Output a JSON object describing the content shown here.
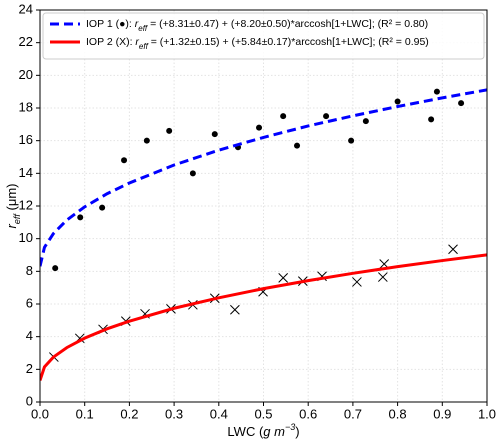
{
  "chart_data": {
    "type": "scatter",
    "xlabel_parts": [
      "LWC (",
      "g m",
      "−3",
      ")"
    ],
    "ylabel_parts": [
      "r",
      "eff",
      " (μm)"
    ],
    "xlim": [
      0,
      1
    ],
    "ylim": [
      0,
      24
    ],
    "xticks": [
      {
        "value": 0,
        "label": "0.0"
      },
      {
        "value": 0.1,
        "label": "0.1"
      },
      {
        "value": 0.2,
        "label": "0.2"
      },
      {
        "value": 0.3,
        "label": "0.3"
      },
      {
        "value": 0.4,
        "label": "0.4"
      },
      {
        "value": 0.5,
        "label": "0.5"
      },
      {
        "value": 0.6,
        "label": "0.6"
      },
      {
        "value": 0.7,
        "label": "0.7"
      },
      {
        "value": 0.8,
        "label": "0.8"
      },
      {
        "value": 0.9,
        "label": "0.9"
      },
      {
        "value": 1,
        "label": "1.0"
      }
    ],
    "yticks": [
      0,
      2,
      4,
      6,
      8,
      10,
      12,
      14,
      16,
      18,
      20,
      22,
      24
    ],
    "grid": true,
    "legend": "upper left",
    "series": [
      {
        "mark": "dot",
        "color": "#000000",
        "x": [
          0.034,
          0.09,
          0.139,
          0.188,
          0.239,
          0.289,
          0.342,
          0.391,
          0.443,
          0.49,
          0.544,
          0.575,
          0.64,
          0.696,
          0.729,
          0.8,
          0.875,
          0.888,
          0.942
        ],
        "values": [
          8.2,
          11.3,
          11.9,
          14.8,
          16.0,
          16.6,
          14.0,
          16.4,
          15.6,
          16.8,
          17.5,
          15.7,
          17.5,
          16.0,
          17.2,
          18.4,
          17.3,
          19.0,
          18.3
        ]
      },
      {
        "mark": "cross",
        "color": "#000000",
        "x": [
          0.031,
          0.089,
          0.141,
          0.192,
          0.235,
          0.293,
          0.342,
          0.391,
          0.436,
          0.499,
          0.544,
          0.588,
          0.631,
          0.709,
          0.767,
          0.77,
          0.924
        ],
        "values": [
          2.75,
          3.9,
          4.45,
          4.95,
          5.4,
          5.7,
          5.95,
          6.35,
          5.65,
          6.75,
          7.6,
          7.4,
          7.7,
          7.35,
          7.65,
          8.45,
          9.35
        ]
      },
      {
        "mark": "dashed-line",
        "color": "#0000ff",
        "name_parts": [
          "IOP 1 (●): ",
          "r",
          "eff",
          " = (+8.31±0.47) + (+8.20±0.50)*arccosh[1+LWC]; (R² = 0.80)"
        ],
        "x": [
          0,
          0.01,
          0.03,
          0.06,
          0.1,
          0.15,
          0.2,
          0.3,
          0.4,
          0.5,
          0.6,
          0.7,
          0.8,
          0.9,
          1
        ],
        "values": [
          8.31,
          9.47,
          10.31,
          11.14,
          11.95,
          12.75,
          13.41,
          14.51,
          15.42,
          16.2,
          16.9,
          17.52,
          18.09,
          18.62,
          19.11
        ]
      },
      {
        "mark": "line",
        "color": "#ff0000",
        "name_parts": [
          "IOP 2 (X): ",
          "r",
          "eff",
          " = (+1.32±0.15) + (+5.84±0.17)*arccosh[1+LWC]; (R² = 0.95)"
        ],
        "x": [
          0,
          0.01,
          0.03,
          0.06,
          0.1,
          0.15,
          0.2,
          0.3,
          0.4,
          0.5,
          0.6,
          0.7,
          0.8,
          0.9,
          1
        ],
        "values": [
          1.32,
          2.15,
          2.75,
          3.33,
          3.91,
          4.48,
          4.95,
          5.74,
          6.38,
          6.94,
          7.43,
          7.88,
          8.29,
          8.66,
          9.01
        ]
      }
    ]
  }
}
